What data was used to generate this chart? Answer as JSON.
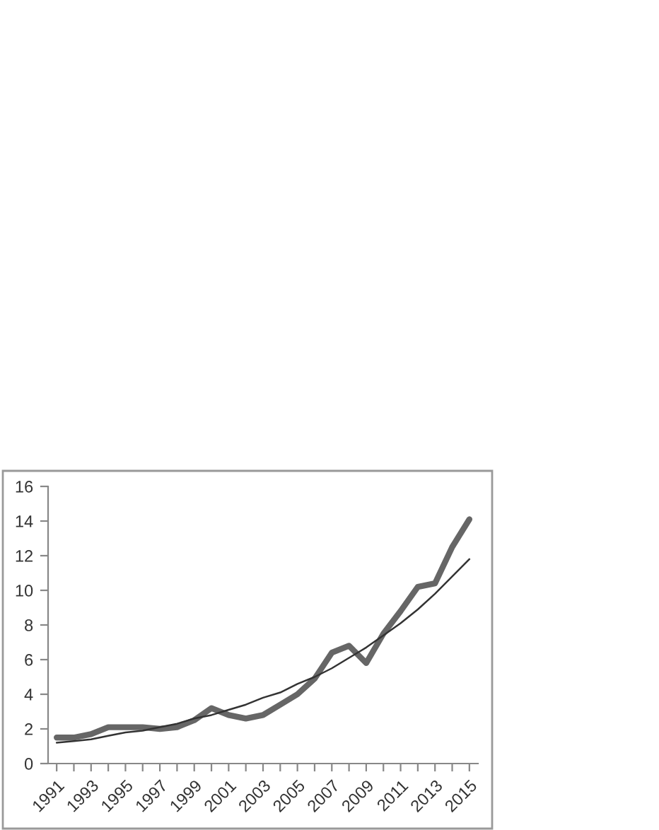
{
  "chart_data": {
    "type": "line",
    "categories": [
      "1991",
      null,
      "1993",
      null,
      "1995",
      null,
      "1997",
      null,
      "1999",
      null,
      "2001",
      null,
      "2003",
      null,
      "2005",
      null,
      "2007",
      null,
      "2009",
      null,
      "2011",
      null,
      "2013",
      null,
      "2015"
    ],
    "series": [
      {
        "color": "#666666",
        "values": [
          1.5,
          1.5,
          1.7,
          2.1,
          2.1,
          2.1,
          2.0,
          2.1,
          2.5,
          3.2,
          2.8,
          2.6,
          2.8,
          3.4,
          4.0,
          4.9,
          6.4,
          6.8,
          5.8,
          7.5,
          8.8,
          10.2,
          10.4,
          12.5,
          14.1
        ]
      },
      {
        "color": "#333333",
        "values": [
          1.2,
          1.3,
          1.4,
          1.6,
          1.8,
          1.9,
          2.1,
          2.3,
          2.6,
          2.8,
          3.1,
          3.4,
          3.8,
          4.1,
          4.6,
          5.0,
          5.5,
          6.1,
          6.7,
          7.4,
          8.1,
          8.9,
          9.8,
          10.8,
          11.8
        ]
      }
    ],
    "ylim": [
      0,
      16
    ],
    "yticks": [
      0,
      2,
      4,
      6,
      8,
      10,
      12,
      14,
      16
    ],
    "grid": false,
    "marker": "none",
    "line_style": "solid"
  }
}
